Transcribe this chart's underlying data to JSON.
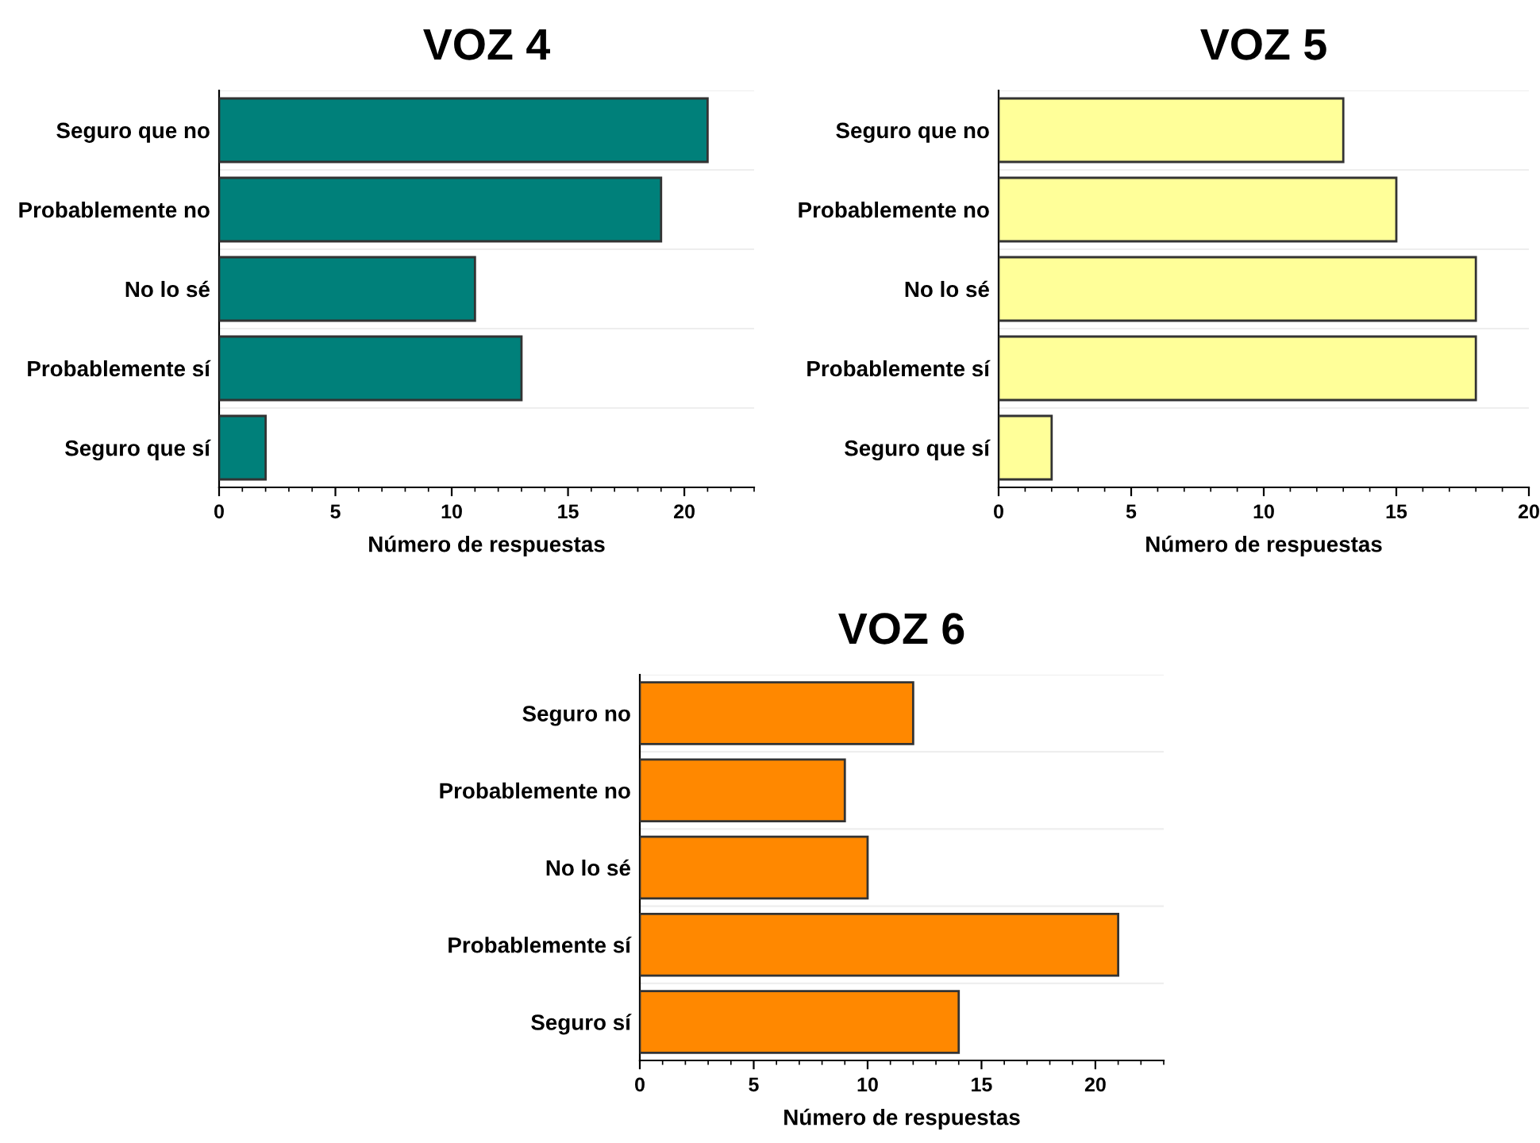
{
  "chart_data": [
    {
      "type": "bar",
      "orientation": "horizontal",
      "title": "VOZ 4",
      "xlabel": "Número de respuestas",
      "categories": [
        "Seguro que no",
        "Probablemente no",
        "No lo sé",
        "Probablemente sí",
        "Seguro que sí"
      ],
      "values": [
        21,
        19,
        11,
        13,
        2
      ],
      "color": "#00807a",
      "xlim": [
        0,
        23
      ],
      "xticks": [
        0,
        5,
        10,
        15,
        20
      ]
    },
    {
      "type": "bar",
      "orientation": "horizontal",
      "title": "VOZ 5",
      "xlabel": "Número de respuestas",
      "categories": [
        "Seguro que no",
        "Probablemente no",
        "No lo sé",
        "Probablemente sí",
        "Seguro que sí"
      ],
      "values": [
        13,
        15,
        18,
        18,
        2
      ],
      "color": "#ffff99",
      "xlim": [
        0,
        20
      ],
      "xticks": [
        0,
        5,
        10,
        15,
        20
      ]
    },
    {
      "type": "bar",
      "orientation": "horizontal",
      "title": "VOZ 6",
      "xlabel": "Número de respuestas",
      "categories": [
        "Seguro no",
        "Probablemente no",
        "No lo sé",
        "Probablemente sí",
        "Seguro sí"
      ],
      "values": [
        12,
        9,
        10,
        21,
        14
      ],
      "color": "#ff8800",
      "xlim": [
        0,
        23
      ],
      "xticks": [
        0,
        5,
        10,
        15,
        20
      ]
    }
  ]
}
